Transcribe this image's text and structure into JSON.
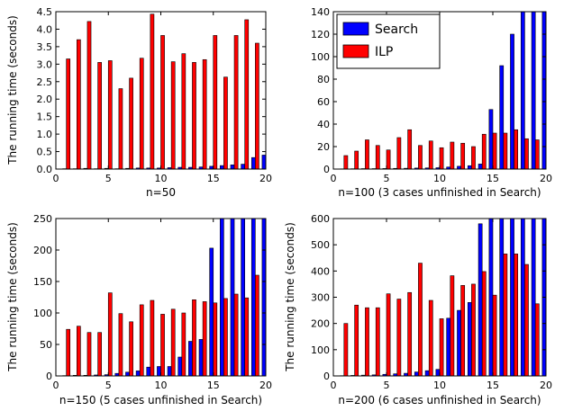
{
  "series_colors": {
    "Search": "#0000ff",
    "ILP": "#ff0000"
  },
  "legend": {
    "entries": [
      "Search",
      "ILP"
    ],
    "location": "upper-left of second panel"
  },
  "chart_data": [
    {
      "type": "bar",
      "xlabel": "n=50",
      "ylabel": "The running time (seconds)",
      "xlim": [
        0,
        20
      ],
      "ylim": [
        0,
        4.5
      ],
      "xticks": [
        0,
        5,
        10,
        15,
        20
      ],
      "yticks": [
        0.0,
        0.5,
        1.0,
        1.5,
        2.0,
        2.5,
        3.0,
        3.5,
        4.0,
        4.5
      ],
      "ytick_labels": [
        "0.0",
        "0.5",
        "1.0",
        "1.5",
        "2.0",
        "2.5",
        "3.0",
        "3.5",
        "4.0",
        "4.5"
      ],
      "categories": [
        1,
        2,
        3,
        4,
        5,
        6,
        7,
        8,
        9,
        10,
        11,
        12,
        13,
        14,
        15,
        16,
        17,
        18,
        19,
        20
      ],
      "series": [
        {
          "name": "Search",
          "values": [
            0.01,
            0.01,
            0.02,
            0.01,
            0.02,
            0.01,
            0.02,
            0.03,
            0.03,
            0.03,
            0.04,
            0.05,
            0.05,
            0.06,
            0.08,
            0.1,
            0.12,
            0.14,
            0.33,
            0.4
          ]
        },
        {
          "name": "ILP",
          "values": [
            3.15,
            3.7,
            4.22,
            3.05,
            3.1,
            2.3,
            2.6,
            3.17,
            4.43,
            3.82,
            3.07,
            3.3,
            3.05,
            3.13,
            3.82,
            2.63,
            3.82,
            4.27,
            3.6,
            3.94
          ]
        }
      ]
    },
    {
      "type": "bar",
      "xlabel": "n=100 (3 cases unfinished in Search)",
      "ylabel": "",
      "xlim": [
        0,
        20
      ],
      "ylim": [
        0,
        140
      ],
      "xticks": [
        0,
        5,
        10,
        15,
        20
      ],
      "yticks": [
        0,
        20,
        40,
        60,
        80,
        100,
        120,
        140
      ],
      "ytick_labels": [
        "0",
        "20",
        "40",
        "60",
        "80",
        "100",
        "120",
        "140"
      ],
      "categories": [
        1,
        2,
        3,
        4,
        5,
        6,
        7,
        8,
        9,
        10,
        11,
        12,
        13,
        14,
        15,
        16,
        17,
        18,
        19,
        20
      ],
      "series": [
        {
          "name": "Search",
          "values": [
            0.2,
            0.3,
            0.4,
            0.4,
            0.5,
            0.6,
            0.7,
            0.9,
            1,
            1.2,
            1.8,
            2.5,
            3,
            4.5,
            53,
            92,
            120,
            140,
            140,
            140
          ]
        },
        {
          "name": "ILP",
          "values": [
            12,
            16,
            26,
            21,
            17,
            28,
            35,
            21,
            25,
            19,
            24,
            23,
            20,
            31,
            32,
            32,
            35,
            27,
            26,
            26
          ]
        }
      ]
    },
    {
      "type": "bar",
      "xlabel": "n=150 (5 cases unfinished in Search)",
      "ylabel": "The running time (seconds)",
      "xlim": [
        0,
        20
      ],
      "ylim": [
        0,
        250
      ],
      "xticks": [
        0,
        5,
        10,
        15,
        20
      ],
      "yticks": [
        0,
        50,
        100,
        150,
        200,
        250
      ],
      "ytick_labels": [
        "0",
        "50",
        "100",
        "150",
        "200",
        "250"
      ],
      "categories": [
        1,
        2,
        3,
        4,
        5,
        6,
        7,
        8,
        9,
        10,
        11,
        12,
        13,
        14,
        15,
        16,
        17,
        18,
        19,
        20
      ],
      "series": [
        {
          "name": "Search",
          "values": [
            0.5,
            1,
            1,
            1.5,
            2,
            4,
            6,
            8,
            14,
            15,
            15,
            30,
            55,
            58,
            203,
            250,
            250,
            250,
            250,
            250
          ]
        },
        {
          "name": "ILP",
          "values": [
            74,
            79,
            69,
            69,
            132,
            99,
            86,
            113,
            120,
            98,
            106,
            100,
            121,
            118,
            116,
            123,
            130,
            124,
            160,
            132
          ]
        }
      ]
    },
    {
      "type": "bar",
      "xlabel": "n=200 (6 cases unfinished in Search)",
      "ylabel": "The running time (seconds)",
      "xlim": [
        0,
        20
      ],
      "ylim": [
        0,
        600
      ],
      "xticks": [
        0,
        5,
        10,
        15,
        20
      ],
      "yticks": [
        0,
        100,
        200,
        300,
        400,
        500,
        600
      ],
      "ytick_labels": [
        "0",
        "100",
        "200",
        "300",
        "400",
        "500",
        "600"
      ],
      "categories": [
        1,
        2,
        3,
        4,
        5,
        6,
        7,
        8,
        9,
        10,
        11,
        12,
        13,
        14,
        15,
        16,
        17,
        18,
        19,
        20
      ],
      "series": [
        {
          "name": "Search",
          "values": [
            1,
            2,
            3,
            4,
            6,
            8,
            10,
            15,
            20,
            25,
            220,
            250,
            280,
            580,
            600,
            600,
            600,
            600,
            600,
            600
          ]
        },
        {
          "name": "ILP",
          "values": [
            200,
            270,
            260,
            260,
            313,
            293,
            318,
            430,
            288,
            218,
            382,
            345,
            350,
            398,
            308,
            465,
            465,
            425,
            275,
            343
          ]
        }
      ]
    }
  ]
}
